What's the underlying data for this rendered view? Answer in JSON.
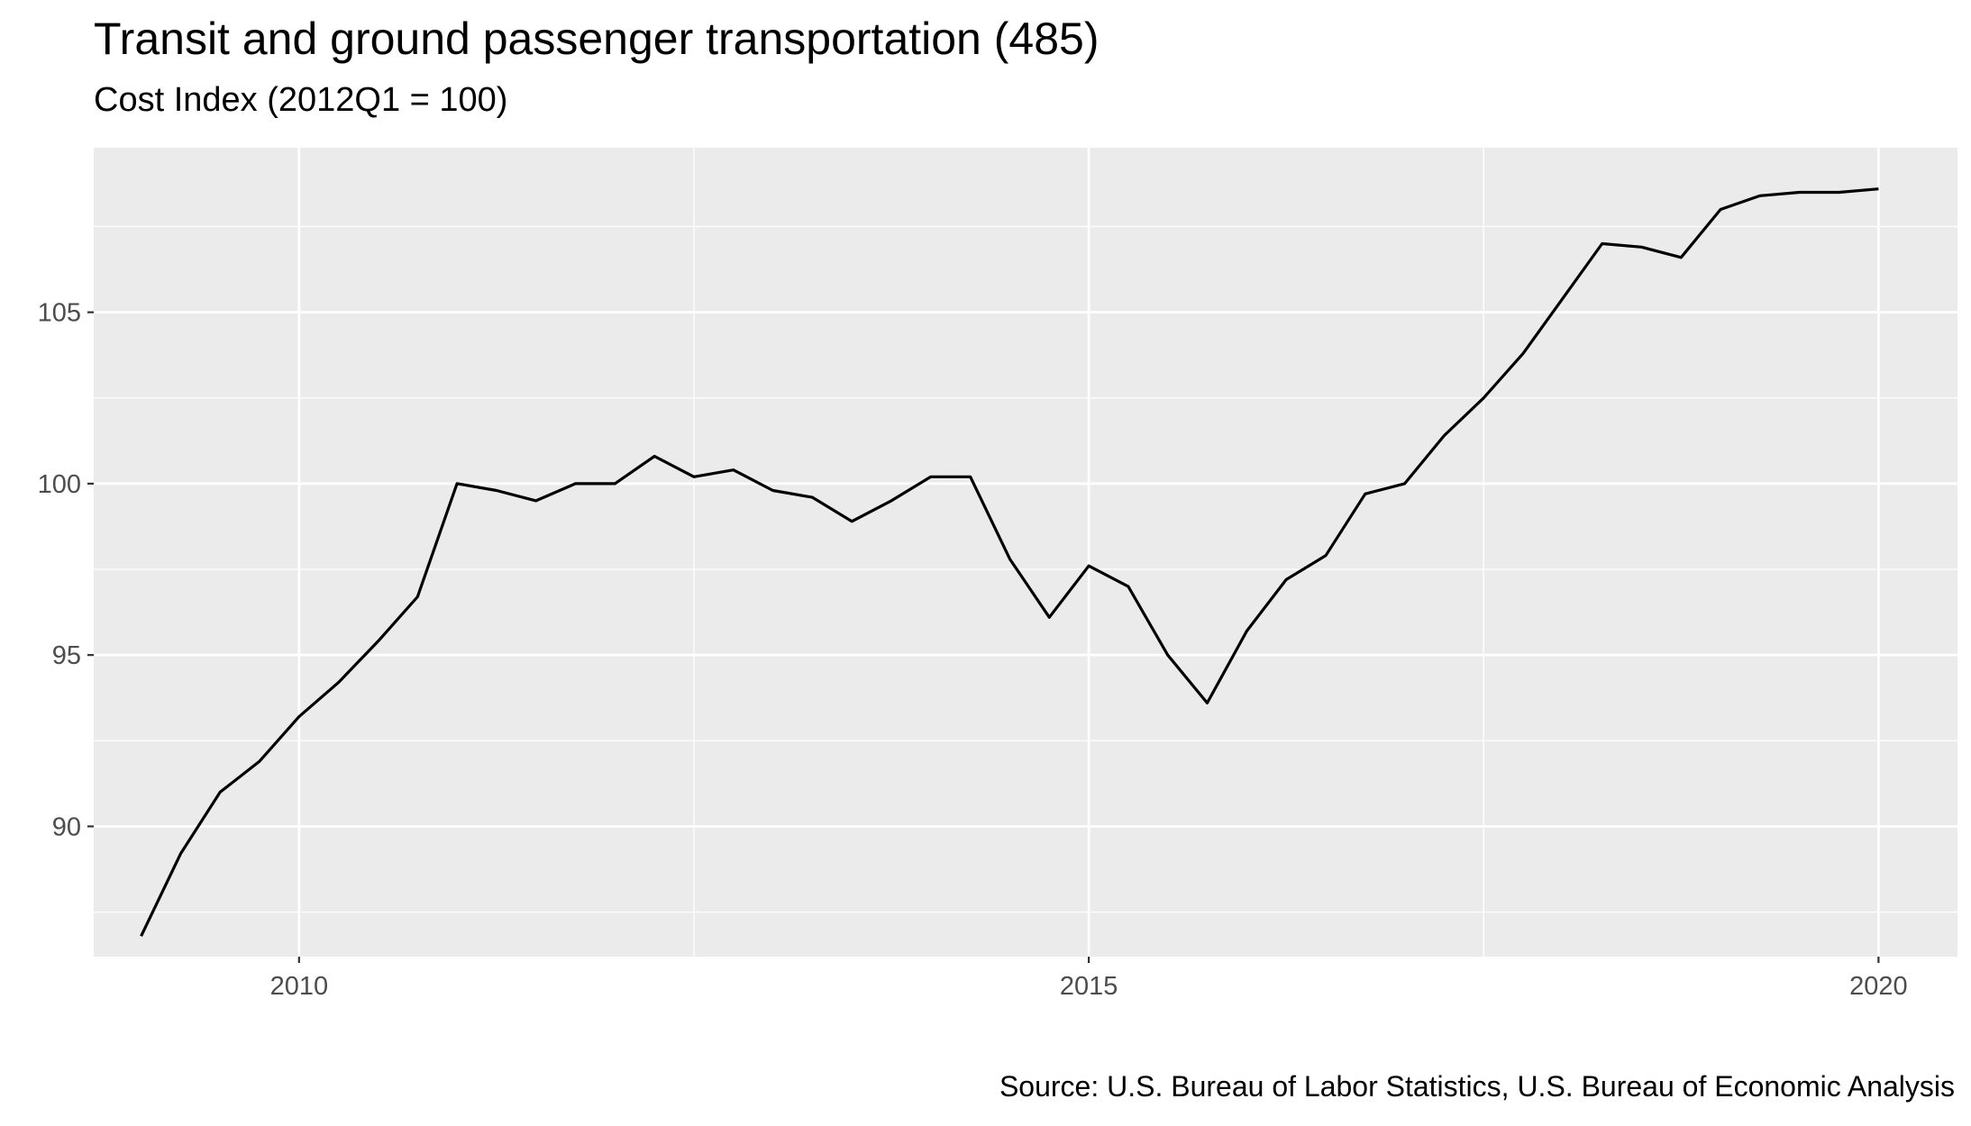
{
  "chart_data": {
    "type": "line",
    "title": "Transit and ground passenger transportation (485)",
    "subtitle": "Cost Index (2012Q1 = 100)",
    "caption": "Source: U.S. Bureau of Labor Statistics, U.S. Bureau of Economic Analysis",
    "xlabel": "",
    "ylabel": "",
    "xlim": [
      2008.7,
      2020.5
    ],
    "ylim": [
      86.2,
      109.8
    ],
    "x_ticks": [
      2010,
      2015,
      2020
    ],
    "x_tick_labels": [
      "2010",
      "2015",
      "2020"
    ],
    "y_ticks": [
      90,
      95,
      100,
      105
    ],
    "y_tick_labels": [
      "90",
      "95",
      "100",
      "105"
    ],
    "grid": true,
    "legend": "none",
    "line_color": "#000000",
    "panel_background": "#ebebeb",
    "grid_color": "#ffffff",
    "series": [
      {
        "x": [
          2009.0,
          2009.25,
          2009.5,
          2009.75,
          2010.0,
          2010.25,
          2010.5,
          2010.75,
          2011.0,
          2011.25,
          2011.5,
          2011.75,
          2012.0,
          2012.25,
          2012.5,
          2012.75,
          2013.0,
          2013.25,
          2013.5,
          2013.75,
          2014.0,
          2014.25,
          2014.5,
          2014.75,
          2015.0,
          2015.25,
          2015.5,
          2015.75,
          2016.0,
          2016.25,
          2016.5,
          2016.75,
          2017.0,
          2017.25,
          2017.5,
          2017.75,
          2018.0,
          2018.25,
          2018.5,
          2018.75,
          2019.0,
          2019.25,
          2019.5,
          2019.75,
          2020.0
        ],
        "values": [
          86.8,
          89.2,
          91.0,
          91.9,
          93.2,
          94.2,
          95.4,
          96.7,
          100.0,
          99.8,
          99.5,
          100.0,
          100.0,
          100.8,
          100.2,
          100.4,
          99.8,
          99.6,
          98.9,
          99.5,
          100.2,
          100.2,
          97.8,
          96.1,
          97.6,
          97.0,
          95.0,
          93.6,
          95.7,
          97.2,
          97.9,
          99.7,
          100.0,
          101.4,
          102.5,
          103.8,
          105.4,
          107.0,
          106.9,
          106.6,
          108.0,
          108.4,
          108.5,
          108.5,
          108.6
        ]
      }
    ]
  }
}
